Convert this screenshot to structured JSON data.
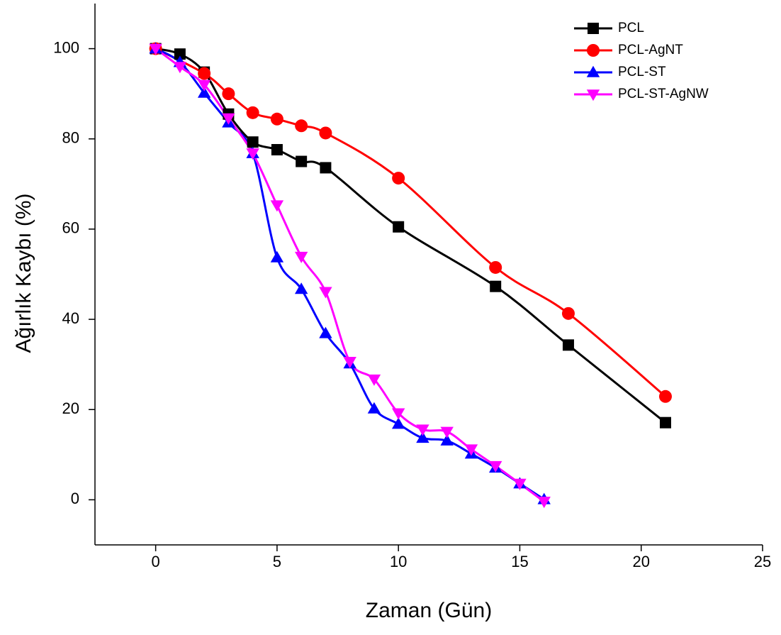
{
  "chart_data": {
    "type": "line",
    "x_label": "Zaman (Gün)",
    "y_label": "Ağırlık Kaybı (%)",
    "xlim": [
      -2.5,
      25
    ],
    "ylim": [
      -10,
      110
    ],
    "xticks": [
      0,
      5,
      10,
      15,
      20,
      25
    ],
    "yticks": [
      0,
      20,
      40,
      60,
      80,
      100
    ],
    "legend": "top-right",
    "series": [
      {
        "name": "PCL",
        "color": "#000000",
        "marker": "square",
        "x": [
          0,
          1,
          2,
          3,
          4,
          5,
          6,
          7,
          10,
          14,
          17,
          21
        ],
        "values": [
          100,
          98.8,
          94.8,
          85.5,
          79.3,
          77.6,
          75,
          73.6,
          60.5,
          47.3,
          34.3,
          17.1
        ]
      },
      {
        "name": "PCL-AgNT",
        "color": "#ff0000",
        "marker": "circle",
        "x": [
          0,
          2,
          3,
          4,
          5,
          6,
          7,
          10,
          14,
          17,
          21
        ],
        "values": [
          100,
          94.5,
          90,
          85.8,
          84.4,
          82.9,
          81.3,
          71.3,
          51.5,
          41.3,
          22.9
        ]
      },
      {
        "name": "PCL-ST",
        "color": "#0000ff",
        "marker": "triangle-up",
        "x": [
          0,
          1,
          2,
          3,
          4,
          5,
          6,
          7,
          8,
          9,
          10,
          11,
          12,
          13,
          14,
          15,
          16
        ],
        "values": [
          100,
          97,
          90.2,
          83.6,
          76.8,
          53.7,
          46.7,
          36.9,
          30.2,
          20.2,
          16.8,
          13.7,
          13.1,
          10.2,
          7.1,
          3.6,
          0.1
        ]
      },
      {
        "name": "PCL-ST-AgNW",
        "color": "#ff00ff",
        "marker": "triangle-down",
        "x": [
          0,
          1,
          2,
          3,
          4,
          5,
          6,
          7,
          8,
          9,
          10,
          11,
          12,
          13,
          14,
          15,
          16
        ],
        "values": [
          100,
          96,
          92,
          84.6,
          76.8,
          65.3,
          53.9,
          46.1,
          30.6,
          26.7,
          19.2,
          15.6,
          15.1,
          11.2,
          7.5,
          3.6,
          -0.4
        ]
      }
    ]
  }
}
